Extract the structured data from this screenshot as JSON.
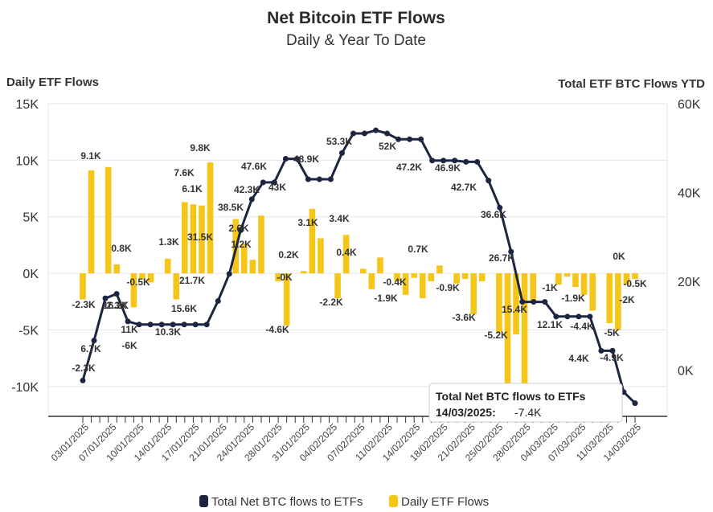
{
  "chart_data": {
    "type": "bar+line",
    "title": "Net Bitcoin ETF Flows",
    "subtitle": "Daily & Year To Date",
    "y_left_title": "Daily ETF Flows",
    "y_right_title": "Total ETF BTC Flows YTD",
    "y_left_ticks": [
      "15K",
      "10K",
      "5K",
      "0K",
      "-5K",
      "-10K"
    ],
    "y_right_ticks": [
      "60K",
      "40K",
      "20K",
      "0K"
    ],
    "y_left_range": [
      -12500,
      15000
    ],
    "y_right_range": [
      -10000,
      60000
    ],
    "x_tick_labels": [
      "03/01/2025",
      "07/01/2025",
      "10/01/2025",
      "14/01/2025",
      "17/01/2025",
      "21/01/2025",
      "24/01/2025",
      "28/01/2025",
      "31/01/2025",
      "04/02/2025",
      "07/02/2025",
      "11/02/2025",
      "14/02/2025",
      "18/02/2025",
      "21/02/2025",
      "25/02/2025",
      "28/02/2025",
      "04/03/2025",
      "07/03/2025",
      "11/03/2025",
      "14/03/2025"
    ],
    "series": [
      {
        "name": "Daily ETF Flows",
        "type": "bar",
        "color": "#f5c518",
        "values": [
          -2300,
          9100,
          0,
          9400,
          800,
          0,
          -3000,
          -500,
          -800,
          0,
          1300,
          -2300,
          6300,
          6100,
          6000,
          9800,
          0,
          0,
          4800,
          2600,
          1200,
          5100,
          0,
          -700,
          -4600,
          0,
          200,
          5700,
          3100,
          0,
          -2200,
          3400,
          0,
          400,
          -1400,
          1400,
          0,
          -700,
          -1900,
          -400,
          -2200,
          -700,
          700,
          0,
          -900,
          -500,
          -3600,
          -700,
          0,
          -5200,
          -10000,
          -5400,
          -11500,
          -2400,
          0,
          0,
          -1000,
          -300,
          -1200,
          -1900,
          -3300,
          0,
          -4400,
          -5000,
          -1000,
          -500
        ]
      },
      {
        "name": "Total Net BTC flows to ETFs",
        "type": "line",
        "color": "#1c2541",
        "values": [
          -2300,
          6700,
          16200,
          17200,
          11000,
          10300,
          10300,
          10300,
          10300,
          10300,
          10300,
          10300,
          15600,
          21700,
          31500,
          38500,
          42300,
          42300,
          47600,
          47600,
          43000,
          43000,
          43000,
          48900,
          53300,
          53300,
          54000,
          53300,
          52000,
          52000,
          52000,
          47200,
          47200,
          47200,
          46900,
          46900,
          42700,
          36600,
          26700,
          15400,
          15400,
          15400,
          12100,
          12100,
          12100,
          12100,
          4400,
          4400,
          -4900,
          -7400
        ]
      }
    ],
    "data_labels": [
      "-2.3K",
      "9.1K",
      "6.7K",
      "-2.3K",
      "16.2K",
      "-2.3K",
      "0.8K",
      "-0.5K",
      "11K",
      "-6K",
      "10.3K",
      "1.3K",
      "15.6K",
      "21.7K",
      "7.6K",
      "6.1K",
      "9.8K",
      "31.5K",
      "38.5K",
      "42.3K",
      "47.6K",
      "2.6K",
      "1.2K",
      "43K",
      "48.9K",
      "-0K",
      "-4.6K",
      "0.2K",
      "3.1K",
      "53.3K",
      "3.4K",
      "-2.2K",
      "0.4K",
      "52K",
      "-0.4K",
      "-1.9K",
      "0.7K",
      "47.2K",
      "46.9K",
      "-0.9K",
      "42.7K",
      "-3.6K",
      "36.6K",
      "26.7K",
      "-5.2K",
      "15.4K",
      "12.1K",
      "-1K",
      "-4.4K",
      "-1.9K",
      "4.4K",
      "-4.9K",
      "0K",
      "-0.5K",
      "-2K",
      "-5K"
    ],
    "tooltip": {
      "series_name": "Total Net BTC flows to ETFs",
      "date_label": "14/03/2025:",
      "value_label": "-7.4K"
    },
    "legend": [
      "Total Net BTC flows to ETFs",
      "Daily ETF Flows"
    ],
    "colors": {
      "bar": "#f5c518",
      "line": "#1c2541",
      "grid": "#e6e6e6"
    }
  }
}
